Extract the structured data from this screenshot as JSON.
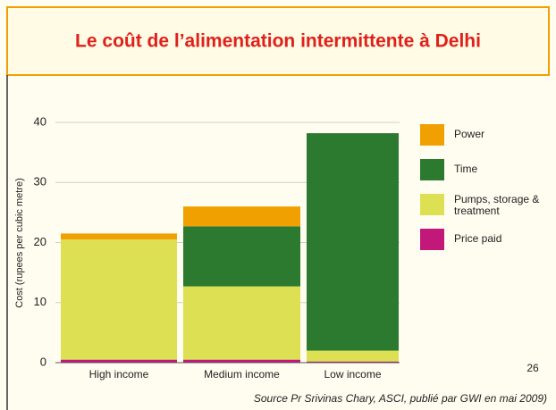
{
  "chart_data": {
    "type": "stacked_bar",
    "title": "Le coût de l’alimentation intermittente à Delhi",
    "y_label": "Cost (rupees per cubic metre)",
    "categories": [
      "High income",
      "Medium income",
      "Low income"
    ],
    "series": [
      {
        "name": "Price paid",
        "color": "#c2187a",
        "values": [
          0.5,
          0.5,
          0.2
        ]
      },
      {
        "name": "Pumps, storage & treatment",
        "color": "#dde052",
        "values": [
          20,
          12.2,
          1.8
        ]
      },
      {
        "name": "Time",
        "color": "#2b7a30",
        "values": [
          0,
          10,
          36.2
        ]
      },
      {
        "name": "Power",
        "color": "#f0a000",
        "values": [
          1,
          3.3,
          0
        ]
      }
    ],
    "ylim": [
      0,
      40
    ],
    "yticks": [
      0,
      10,
      20,
      30,
      40
    ],
    "grid": true,
    "page_number": "26",
    "source": "Source Pr Srivinas Chary, ASCI, publié par GWI en mai 2009)"
  }
}
